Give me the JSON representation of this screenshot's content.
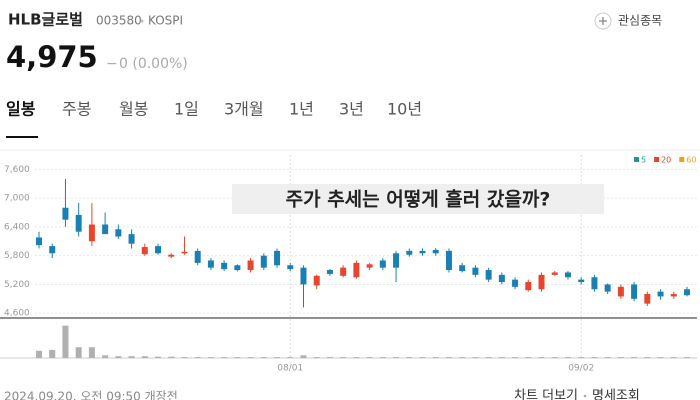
{
  "header": {
    "name": "HLB글로벌",
    "code": "003580",
    "market": "KOSPI",
    "watch": "관심종목",
    "price": "4,975",
    "change_sign": "−",
    "change": "0 (0.00%)"
  },
  "tabs": [
    "일봉",
    "주봉",
    "월봉",
    "1일",
    "3개월",
    "1년",
    "3년",
    "10년"
  ],
  "footer": {
    "timestamp": "2024.09.20. 오전 09:50 개장전",
    "more": "차트 더보기",
    "detail": "명세조회"
  },
  "chart_data": {
    "type": "candlestick",
    "annotation": "주가 추세는 어떻게 흘러 갔을까?",
    "legend": [
      {
        "name": "5",
        "color": "#1a9c8c"
      },
      {
        "name": "20",
        "color": "#e0452b"
      },
      {
        "name": "60",
        "color": "#f0a020"
      }
    ],
    "up_color": "#e8452e",
    "down_color": "#1a7fb5",
    "volume_color": "#b0b0b0",
    "categories": [
      null,
      null,
      null,
      null,
      null,
      null,
      null,
      null,
      null,
      null,
      null,
      null,
      null,
      null,
      null,
      null,
      null,
      null,
      null,
      "08/01",
      null,
      null,
      null,
      null,
      null,
      null,
      null,
      null,
      null,
      null,
      null,
      null,
      null,
      null,
      null,
      null,
      null,
      null,
      null,
      null,
      null,
      "09/02",
      null,
      null,
      null,
      null,
      null,
      null,
      null,
      null
    ],
    "open": [
      6180,
      6000,
      6800,
      6650,
      6100,
      6450,
      6350,
      6250,
      5830,
      6000,
      5780,
      5850,
      5900,
      5700,
      5650,
      5600,
      5500,
      5800,
      5900,
      5600,
      5550,
      5180,
      5500,
      5380,
      5350,
      5550,
      5700,
      5850,
      5900,
      5900,
      5920,
      5900,
      5600,
      5550,
      5500,
      5400,
      5300,
      5080,
      5100,
      5400,
      5450,
      5300,
      5350,
      5200,
      4950,
      5200,
      4800,
      5050,
      4950,
      5100
    ],
    "high": [
      6300,
      6050,
      7400,
      6900,
      6900,
      6700,
      6450,
      6350,
      6050,
      6050,
      5850,
      6200,
      5950,
      5750,
      5700,
      5620,
      5750,
      5850,
      5950,
      5650,
      5600,
      5400,
      5520,
      5600,
      5700,
      5650,
      5750,
      5900,
      5950,
      5950,
      5960,
      5950,
      5650,
      5600,
      5550,
      5450,
      5350,
      5300,
      5450,
      5480,
      5480,
      5350,
      5400,
      5220,
      5200,
      5250,
      5050,
      5100,
      5050,
      5150
    ],
    "low": [
      5950,
      5750,
      6400,
      6200,
      6000,
      6250,
      6150,
      5950,
      5800,
      5820,
      5750,
      5820,
      5600,
      5500,
      5480,
      5470,
      5450,
      5500,
      5550,
      5480,
      4720,
      5100,
      5380,
      5350,
      5320,
      5500,
      5500,
      5250,
      5780,
      5800,
      5800,
      5450,
      5450,
      5350,
      5250,
      5200,
      5100,
      5050,
      5050,
      5380,
      5300,
      5200,
      5050,
      5000,
      4900,
      4850,
      4750,
      4880,
      4900,
      4950
    ],
    "close": [
      6020,
      5850,
      6550,
      6300,
      6450,
      6250,
      6200,
      6050,
      5980,
      5850,
      5820,
      5880,
      5650,
      5550,
      5520,
      5500,
      5700,
      5550,
      5600,
      5520,
      5200,
      5380,
      5420,
      5550,
      5650,
      5620,
      5550,
      5550,
      5820,
      5850,
      5850,
      5500,
      5480,
      5400,
      5300,
      5250,
      5150,
      5250,
      5400,
      5450,
      5350,
      5250,
      5100,
      5050,
      5150,
      4900,
      5000,
      4950,
      5000,
      4975
    ],
    "volume": [
      8,
      9,
      36,
      12,
      12,
      3,
      2,
      2,
      2,
      1.5,
      1.5,
      1,
      1,
      1,
      1,
      1,
      1,
      1,
      1,
      1,
      3,
      1,
      1,
      1,
      1,
      1,
      1,
      1,
      1,
      1,
      1,
      1,
      1,
      1,
      1,
      1,
      1,
      1,
      1,
      1,
      1,
      1,
      1,
      1,
      1,
      1,
      1,
      1,
      1,
      1
    ],
    "volume_ylim": [
      0,
      40
    ],
    "ylim": [
      4500,
      7900
    ],
    "yticks": [
      {
        "value": 7600,
        "label": "7,600"
      },
      {
        "value": 7000,
        "label": "7,000"
      },
      {
        "value": 6400,
        "label": "6,400"
      },
      {
        "value": 5800,
        "label": "5,800"
      },
      {
        "value": 5200,
        "label": "5,200"
      },
      {
        "value": 4600,
        "label": "4,600"
      }
    ],
    "grid": true
  }
}
